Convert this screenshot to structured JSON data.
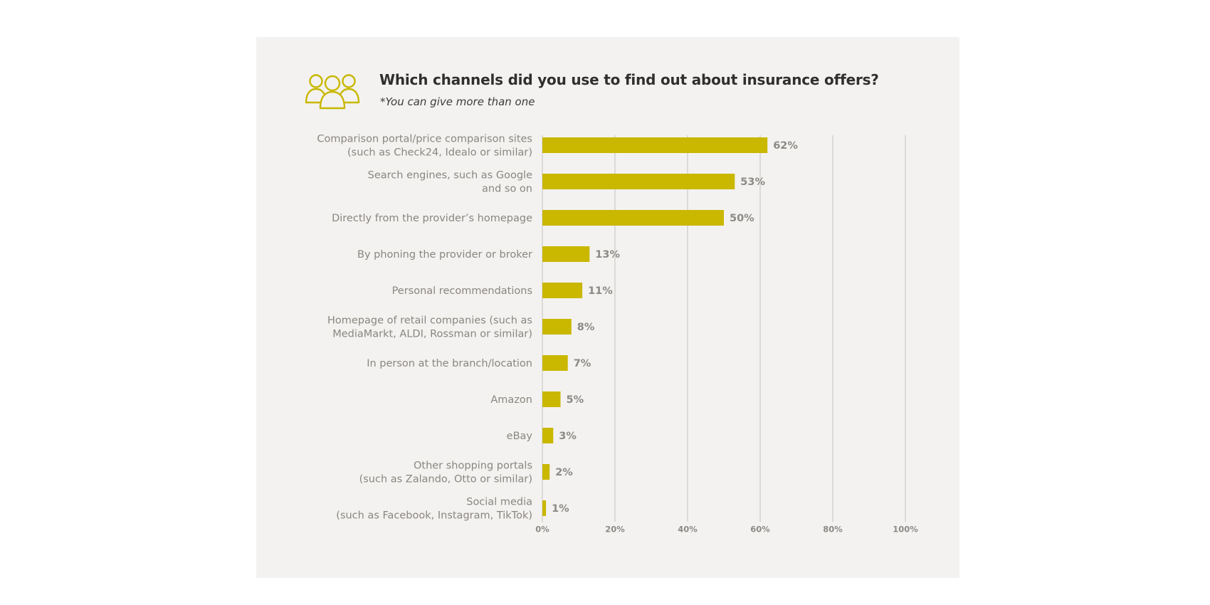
{
  "header": {
    "icon": "people-group-icon",
    "title": "Which channels did you use to find out about insurance offers?",
    "subtitle": "*You can give more than one"
  },
  "colors": {
    "bar": "#c9b700",
    "panel": "#f3f2f0",
    "grid": "#d6d4d0",
    "label": "#8a8680"
  },
  "chart_data": {
    "type": "bar",
    "orientation": "horizontal",
    "title": "Which channels did you use to find out about insurance offers?",
    "subtitle": "*You can give more than one",
    "xlabel": "",
    "ylabel": "",
    "xlim": [
      0,
      100
    ],
    "grid": true,
    "categories": [
      [
        "Comparison portal/price comparison sites",
        "(such as Check24, Idealo or similar)"
      ],
      [
        "Search engines, such as Google",
        "and so on"
      ],
      [
        "Directly from the provider’s homepage"
      ],
      [
        "By phoning the provider or broker"
      ],
      [
        "Personal recommendations"
      ],
      [
        "Homepage of retail companies (such as",
        "MediaMarkt, ALDI, Rossman or similar)"
      ],
      [
        "In person at the branch/location"
      ],
      [
        "Amazon"
      ],
      [
        "eBay"
      ],
      [
        "Other shopping portals",
        "(such as Zalando, Otto or similar)"
      ],
      [
        "Social media",
        "(such as Facebook, Instagram, TikTok)"
      ]
    ],
    "values": [
      62,
      53,
      50,
      13,
      11,
      8,
      7,
      5,
      3,
      2,
      1
    ],
    "value_labels": [
      "62%",
      "53%",
      "50%",
      "13%",
      "11%",
      "8%",
      "7%",
      "5%",
      "3%",
      "2%",
      "1%"
    ],
    "ticks": [
      0,
      20,
      40,
      60,
      80,
      100
    ],
    "tick_labels": [
      "0%",
      "20%",
      "40%",
      "60%",
      "80%",
      "100%"
    ]
  }
}
